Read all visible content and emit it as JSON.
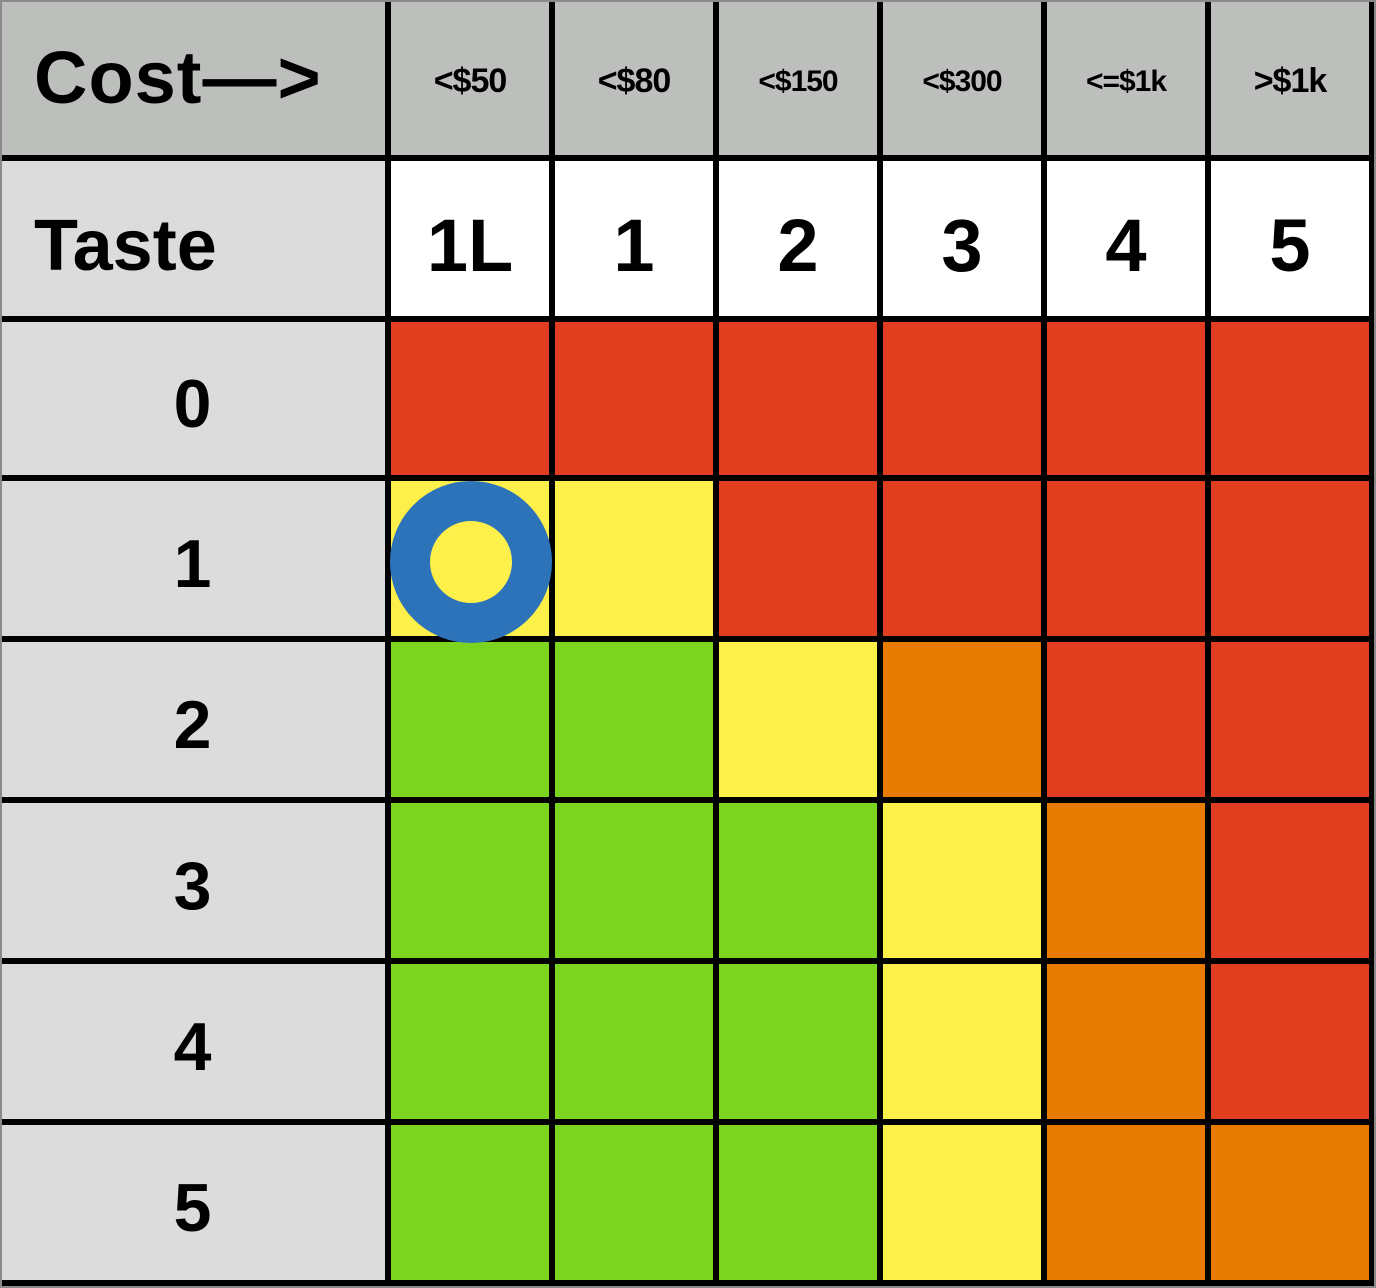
{
  "chart_data": {
    "type": "heatmap",
    "corner_label": "Cost—>",
    "row_header_label": "Taste",
    "cost_labels": [
      "<$50",
      "<$80",
      "<$150",
      "<$300",
      "<=$1k",
      ">$1k"
    ],
    "taste_levels": [
      "1L",
      "1",
      "2",
      "3",
      "4",
      "5"
    ],
    "rows": [
      {
        "label": "0",
        "cells": [
          "red",
          "red",
          "red",
          "red",
          "red",
          "red"
        ]
      },
      {
        "label": "1",
        "cells": [
          "yellow",
          "yellow",
          "red",
          "red",
          "red",
          "red"
        ]
      },
      {
        "label": "2",
        "cells": [
          "green",
          "green",
          "yellow",
          "orange",
          "red",
          "red"
        ]
      },
      {
        "label": "3",
        "cells": [
          "green",
          "green",
          "green",
          "yellow",
          "orange",
          "red"
        ]
      },
      {
        "label": "4",
        "cells": [
          "green",
          "green",
          "green",
          "yellow",
          "orange",
          "red"
        ]
      },
      {
        "label": "5",
        "cells": [
          "green",
          "green",
          "green",
          "yellow",
          "orange",
          "orange"
        ]
      }
    ],
    "colors": {
      "red": "#e03e1f",
      "yellow": "#fef04a",
      "green": "#7cd41e",
      "orange": "#e77a00",
      "header": "#bdbfbd",
      "row_label_bg": "#dcdcdc",
      "marker": "#2c73b9"
    },
    "marker": {
      "row": "1",
      "column": "<$50",
      "shape": "ring"
    }
  }
}
